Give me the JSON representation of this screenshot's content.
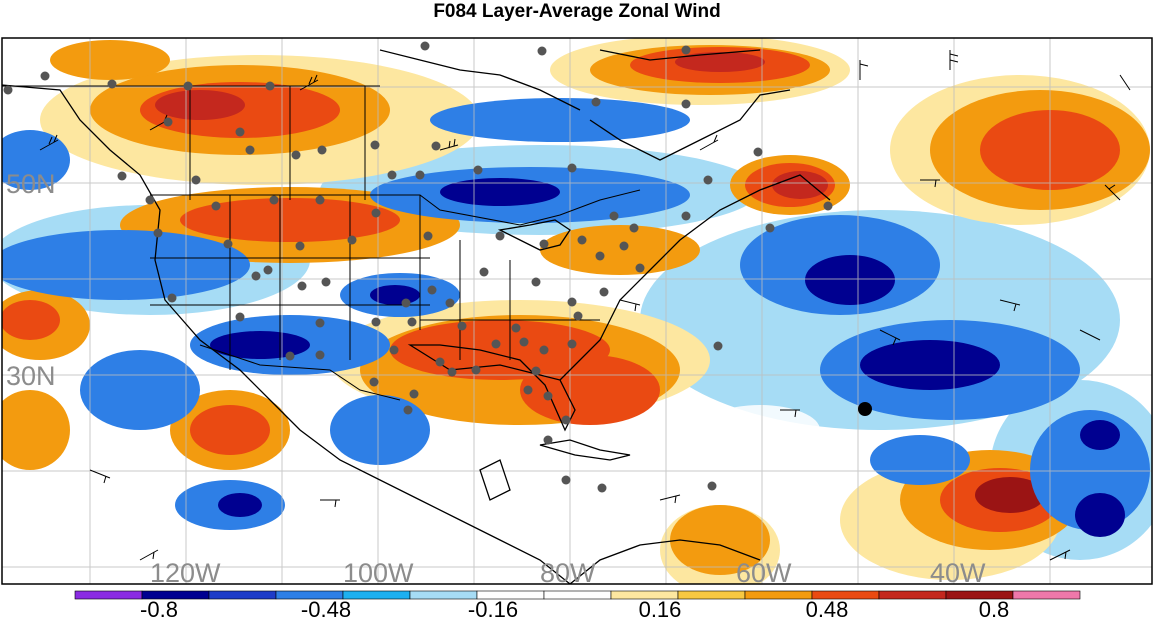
{
  "title": "F084 Layer-Average Zonal Wind",
  "grid_labels": {
    "lat": [
      "50N",
      "30N"
    ],
    "lon": [
      "120W",
      "100W",
      "80W",
      "60W",
      "40W"
    ]
  },
  "colorbar": {
    "colors": [
      "#8a2be2",
      "#000090",
      "#1e3cc8",
      "#2e7fe6",
      "#1eb0f0",
      "#a6dcf5",
      "#ffffff",
      "#ffffff",
      "#fde7a0",
      "#f7c842",
      "#f39b0f",
      "#ea4a12",
      "#c4281e",
      "#9b1414",
      "#ef78aa"
    ],
    "tick_labels": [
      "-0.8",
      "-0.48",
      "-0.16",
      "0.16",
      "0.48",
      "0.8"
    ]
  },
  "legend": {
    "colors": {
      "ocean_bg": "#ffffff",
      "strong_negative": "#000090",
      "negative": "#1e3cc8",
      "weak_negative": "#a6dcf5",
      "weak_positive": "#fde7a0",
      "positive": "#f39b0f",
      "strong_positive": "#c4281e",
      "station": "#555555",
      "grid": "#bdbdbd"
    }
  }
}
